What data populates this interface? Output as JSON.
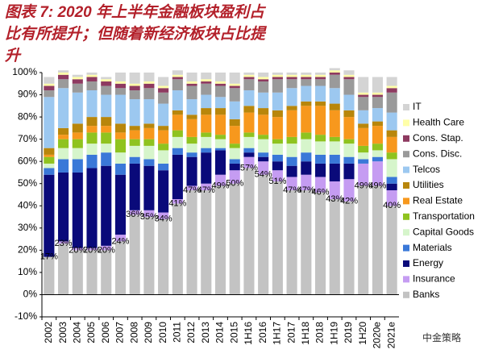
{
  "chart_data": {
    "type": "stacked-bar",
    "title": "图表 7: 2020 年上半年金融板块盈利占比有所提升；但随着新经济板块占比提升",
    "watermark": "中金策略",
    "categories": [
      "2002",
      "2003",
      "2004",
      "2005",
      "2006",
      "2007",
      "2008",
      "2009",
      "2010",
      "2011",
      "2012",
      "2013",
      "2014",
      "2015",
      "1H16",
      "2016",
      "1H17",
      "2017",
      "1H18",
      "2018",
      "1H19",
      "2019",
      "1H20",
      "2020e",
      "2021e"
    ],
    "ylim": [
      -10,
      100
    ],
    "yticks": [
      {
        "value": -10,
        "label": "-10%"
      },
      {
        "value": 0,
        "label": "0%"
      },
      {
        "value": 10,
        "label": "10%"
      },
      {
        "value": 20,
        "label": "20%"
      },
      {
        "value": 30,
        "label": "30%"
      },
      {
        "value": 40,
        "label": "40%"
      },
      {
        "value": 50,
        "label": "50%"
      },
      {
        "value": 60,
        "label": "60%"
      },
      {
        "value": 70,
        "label": "70%"
      },
      {
        "value": 80,
        "label": "80%"
      },
      {
        "value": 90,
        "label": "90%"
      },
      {
        "value": 100,
        "label": "100%"
      }
    ],
    "series": [
      {
        "name": "Banks",
        "color": "#c3c3c3",
        "values": [
          17,
          23,
          20,
          20,
          20,
          24,
          36,
          35,
          34,
          41,
          47,
          47,
          49,
          50,
          57,
          54,
          51,
          47,
          47,
          46,
          43,
          42,
          49,
          49,
          40
        ],
        "value_labels": [
          "17%",
          "23%",
          "20%",
          "20%",
          "20%",
          "24%",
          "36%",
          "35%",
          "34%",
          "41%",
          "47%",
          "47%",
          "49%",
          "50%",
          "57%",
          "54%",
          "51%",
          "47%",
          "47%",
          "46%",
          "43%",
          "42%",
          "49%",
          "49%",
          "40%"
        ]
      },
      {
        "name": "Insurance",
        "color": "#c59cf2",
        "values": [
          0,
          1,
          1,
          1,
          2,
          3,
          2,
          3,
          3,
          2,
          2,
          3,
          5,
          6,
          5,
          6,
          5,
          6,
          7,
          7,
          8,
          10,
          10,
          11,
          7
        ]
      },
      {
        "name": "Energy",
        "color": "#0a0a7a",
        "values": [
          37,
          31,
          34,
          36,
          36,
          27,
          21,
          20,
          19,
          20,
          13,
          14,
          11,
          3,
          2,
          2,
          4,
          5,
          6,
          6,
          8,
          7,
          0,
          0,
          3
        ]
      },
      {
        "name": "Materials",
        "color": "#3a78d8",
        "values": [
          3,
          6,
          6,
          6,
          6,
          5,
          3,
          3,
          3,
          3,
          2,
          2,
          1,
          2,
          2,
          2,
          3,
          4,
          4,
          4,
          4,
          3,
          2,
          2,
          3
        ]
      },
      {
        "name": "Capital Goods",
        "color": "#d6f5cb",
        "values": [
          2,
          5,
          5,
          5,
          4,
          5,
          5,
          6,
          6,
          5,
          4,
          5,
          4,
          5,
          5,
          6,
          5,
          6,
          6,
          6,
          6,
          6,
          3,
          3,
          8
        ]
      },
      {
        "name": "Transportation",
        "color": "#8fc31f",
        "values": [
          3,
          4,
          4,
          5,
          5,
          6,
          3,
          3,
          3,
          3,
          3,
          2,
          2,
          2,
          2,
          2,
          2,
          3,
          3,
          3,
          2,
          2,
          3,
          3,
          3
        ]
      },
      {
        "name": "Real Estate",
        "color": "#f7981d",
        "values": [
          1,
          2,
          3,
          3,
          3,
          3,
          4,
          5,
          6,
          7,
          8,
          8,
          9,
          8,
          9,
          9,
          10,
          12,
          12,
          13,
          12,
          10,
          8,
          8,
          7
        ]
      },
      {
        "name": "Utilities",
        "color": "#b8860b",
        "values": [
          3,
          3,
          4,
          4,
          4,
          4,
          2,
          2,
          2,
          2,
          2,
          3,
          3,
          3,
          3,
          3,
          3,
          2,
          2,
          2,
          3,
          3,
          2,
          2,
          3
        ]
      },
      {
        "name": "Telcos",
        "color": "#9cc8f0",
        "values": [
          23,
          18,
          14,
          12,
          10,
          13,
          12,
          11,
          10,
          9,
          7,
          6,
          5,
          8,
          7,
          7,
          8,
          8,
          7,
          7,
          7,
          7,
          6,
          6,
          8
        ]
      },
      {
        "name": "Cons. Disc.",
        "color": "#9a9a9a",
        "values": [
          3,
          4,
          4,
          4,
          4,
          3,
          4,
          5,
          5,
          5,
          6,
          5,
          5,
          6,
          5,
          5,
          6,
          4,
          3,
          3,
          6,
          7,
          6,
          5,
          9
        ]
      },
      {
        "name": "Cons. Stap.",
        "color": "#8e3a60",
        "values": [
          2,
          2,
          2,
          2,
          2,
          2,
          2,
          2,
          2,
          1,
          1,
          1,
          1,
          1,
          1,
          1,
          1,
          1,
          1,
          1,
          1,
          1,
          1,
          1,
          2
        ]
      },
      {
        "name": "Health Care",
        "color": "#ffffa8",
        "values": [
          1,
          1,
          1,
          1,
          1,
          1,
          1,
          1,
          1,
          1,
          1,
          1,
          1,
          1,
          1,
          1,
          1,
          1,
          1,
          1,
          1,
          1,
          1,
          1,
          1
        ]
      },
      {
        "name": "IT",
        "color": "#d4d4d4",
        "values": [
          3,
          1,
          1,
          1,
          1,
          4,
          5,
          4,
          4,
          2,
          4,
          3,
          4,
          5,
          1,
          2,
          1,
          1,
          1,
          1,
          1,
          2,
          7,
          7,
          4
        ]
      }
    ]
  }
}
